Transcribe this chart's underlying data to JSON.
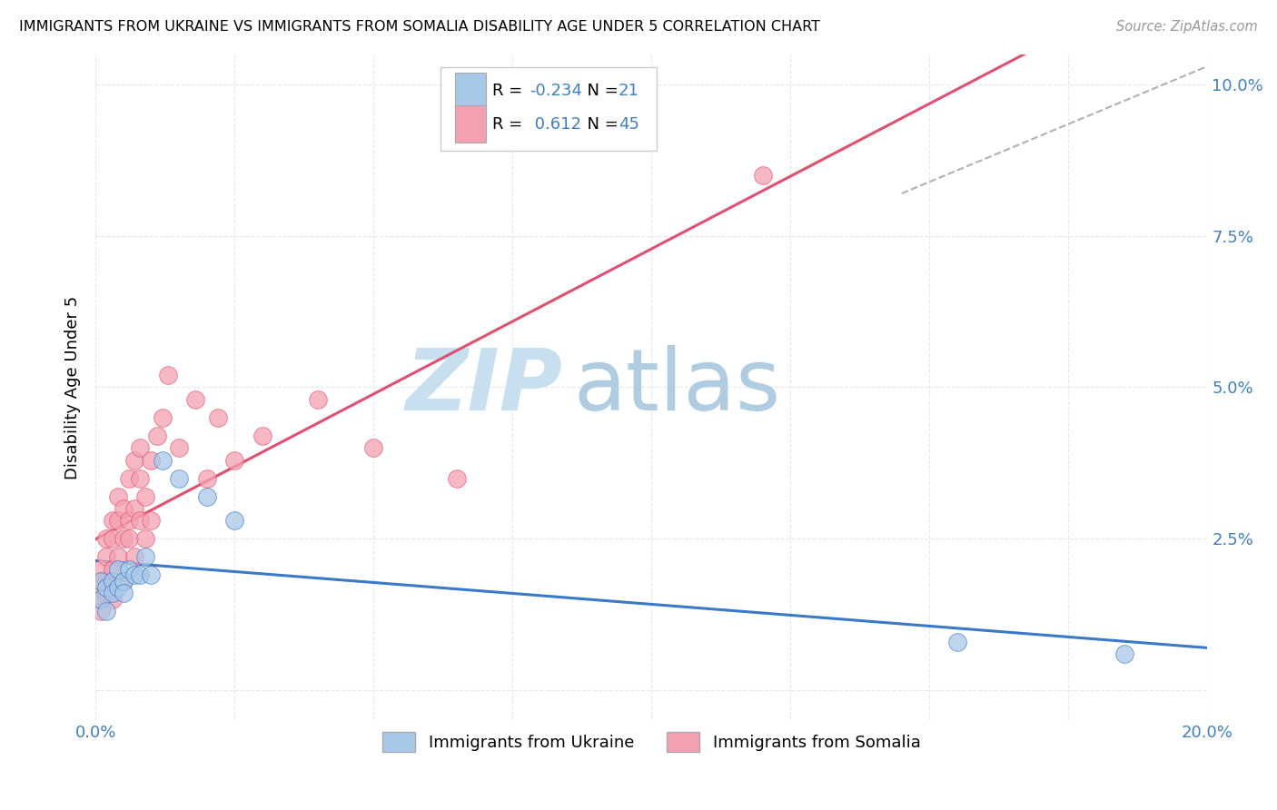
{
  "title": "IMMIGRANTS FROM UKRAINE VS IMMIGRANTS FROM SOMALIA DISABILITY AGE UNDER 5 CORRELATION CHART",
  "source": "Source: ZipAtlas.com",
  "ylabel": "Disability Age Under 5",
  "legend_ukraine": "Immigrants from Ukraine",
  "legend_somalia": "Immigrants from Somalia",
  "R_ukraine": -0.234,
  "N_ukraine": 21,
  "R_somalia": 0.612,
  "N_somalia": 45,
  "color_ukraine": "#a8c8e8",
  "color_somalia": "#f4a0b0",
  "color_ukraine_line": "#3a78c9",
  "color_somalia_line": "#e05070",
  "ukraine_scatter_x": [
    0.001,
    0.001,
    0.002,
    0.002,
    0.003,
    0.003,
    0.004,
    0.004,
    0.005,
    0.005,
    0.006,
    0.007,
    0.008,
    0.009,
    0.01,
    0.012,
    0.015,
    0.02,
    0.025,
    0.155,
    0.185
  ],
  "ukraine_scatter_y": [
    0.018,
    0.015,
    0.017,
    0.013,
    0.018,
    0.016,
    0.02,
    0.017,
    0.018,
    0.016,
    0.02,
    0.019,
    0.019,
    0.022,
    0.019,
    0.038,
    0.035,
    0.032,
    0.028,
    0.008,
    0.006
  ],
  "somalia_scatter_x": [
    0.001,
    0.001,
    0.001,
    0.001,
    0.001,
    0.002,
    0.002,
    0.002,
    0.002,
    0.003,
    0.003,
    0.003,
    0.003,
    0.004,
    0.004,
    0.004,
    0.005,
    0.005,
    0.005,
    0.006,
    0.006,
    0.006,
    0.007,
    0.007,
    0.007,
    0.008,
    0.008,
    0.008,
    0.009,
    0.009,
    0.01,
    0.01,
    0.011,
    0.012,
    0.013,
    0.015,
    0.018,
    0.02,
    0.022,
    0.025,
    0.03,
    0.04,
    0.05,
    0.065,
    0.12
  ],
  "somalia_scatter_y": [
    0.015,
    0.013,
    0.018,
    0.02,
    0.017,
    0.016,
    0.022,
    0.025,
    0.018,
    0.02,
    0.025,
    0.028,
    0.015,
    0.022,
    0.028,
    0.032,
    0.025,
    0.03,
    0.018,
    0.028,
    0.035,
    0.025,
    0.03,
    0.038,
    0.022,
    0.035,
    0.028,
    0.04,
    0.032,
    0.025,
    0.038,
    0.028,
    0.042,
    0.045,
    0.052,
    0.04,
    0.048,
    0.035,
    0.045,
    0.038,
    0.042,
    0.048,
    0.04,
    0.035,
    0.085
  ],
  "xlim": [
    0.0,
    0.2
  ],
  "ylim": [
    -0.005,
    0.105
  ],
  "ytick_vals": [
    0.0,
    0.025,
    0.05,
    0.075,
    0.1
  ],
  "ytick_labels": [
    "",
    "2.5%",
    "5.0%",
    "7.5%",
    "10.0%"
  ],
  "xtick_vals": [
    0.0,
    0.025,
    0.05,
    0.075,
    0.1,
    0.125,
    0.15,
    0.175,
    0.2
  ],
  "xtick_show": [
    "0.0%",
    "",
    "",
    "",
    "",
    "",
    "",
    "",
    "20.0%"
  ],
  "watermark_zip": "ZIP",
  "watermark_atlas": "atlas",
  "watermark_color_zip": "#c8dff0",
  "watermark_color_atlas": "#b0cce0",
  "background_color": "#ffffff",
  "grid_color": "#e8e8e8",
  "legend_text_color": "#4080c0",
  "dashed_line_x": [
    0.145,
    0.2
  ],
  "dashed_line_y": [
    0.082,
    0.103
  ]
}
